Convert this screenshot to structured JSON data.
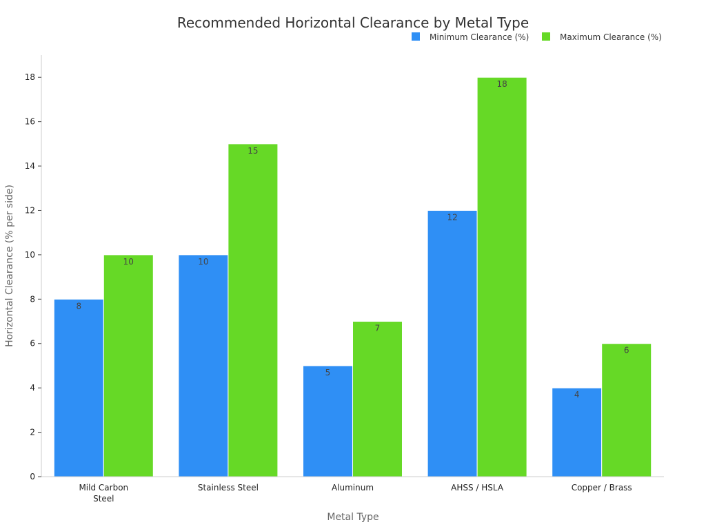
{
  "chart_data": {
    "type": "bar",
    "title": "Recommended Horizontal Clearance by Metal Type",
    "xlabel": "Metal Type",
    "ylabel": "Horizontal Clearance (% per side)",
    "categories": [
      "Mild Carbon Steel",
      "Stainless Steel",
      "Aluminum",
      "AHSS / HSLA",
      "Copper / Brass"
    ],
    "series": [
      {
        "name": "Minimum Clearance (%)",
        "color": "#2f8ff5",
        "values": [
          8,
          10,
          5,
          12,
          4
        ]
      },
      {
        "name": "Maximum Clearance (%)",
        "color": "#66d926",
        "values": [
          10,
          15,
          7,
          18,
          6
        ]
      }
    ],
    "ylim": [
      0,
      19
    ],
    "yticks": [
      0,
      2,
      4,
      6,
      8,
      10,
      12,
      14,
      16,
      18
    ],
    "legend_position": "top-right",
    "grid": false
  }
}
